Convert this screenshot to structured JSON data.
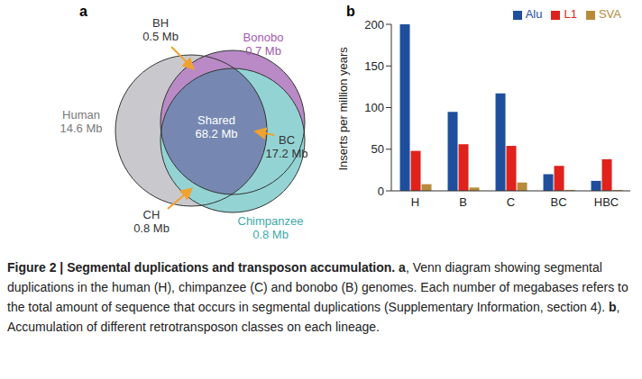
{
  "venn": {
    "label": "a",
    "unit": "Mb",
    "sets": [
      {
        "name": "Human",
        "value": 14.6,
        "color": "#c9c9cd",
        "text_color": "#7a7a7a"
      },
      {
        "name": "Bonobo",
        "value": 0.7,
        "color": "#b98ac6",
        "text_color": "#a458ad"
      },
      {
        "name": "Chimpanzee",
        "value": 0.8,
        "color": "#93d3d3",
        "text_color": "#3fa9a9"
      }
    ],
    "overlaps": [
      {
        "name": "Shared",
        "value": 68.2,
        "color": "#7688b2"
      },
      {
        "name": "BH",
        "value": 0.5
      },
      {
        "name": "BC",
        "value": 17.2
      },
      {
        "name": "CH",
        "value": 0.8
      }
    ]
  },
  "panel_b_label": "b",
  "chart_data": {
    "type": "bar",
    "categories": [
      "H",
      "B",
      "C",
      "BC",
      "HBC"
    ],
    "y_label": "Inserts per million years",
    "ylim": [
      0,
      200
    ],
    "yticks": [
      0,
      50,
      100,
      150,
      200
    ],
    "grid": false,
    "legend": "top",
    "series": [
      {
        "name": "Alu",
        "color": "#1f4f9c",
        "values": [
          200,
          95,
          117,
          20,
          12
        ]
      },
      {
        "name": "L1",
        "color": "#e0221c",
        "values": [
          48,
          56,
          54,
          30,
          38
        ]
      },
      {
        "name": "SVA",
        "color": "#b88a3c",
        "values": [
          8,
          4,
          10,
          1,
          1
        ]
      }
    ]
  },
  "caption": [
    {
      "text": "Figure 2 | Segmental duplications and transposon accumulation. ",
      "bold": true
    },
    {
      "text": "a",
      "bold": true
    },
    {
      "text": ", Venn diagram showing segmental duplications in the human (H), chimpanzee (C) and bonobo (B) genomes. Each number of megabases refers to the total amount of sequence that occurs in segmental duplications (Supplementary Information, section 4). ",
      "bold": false
    },
    {
      "text": "b",
      "bold": true
    },
    {
      "text": ", Accumulation of different retrotransposon classes on each lineage.",
      "bold": false
    }
  ]
}
